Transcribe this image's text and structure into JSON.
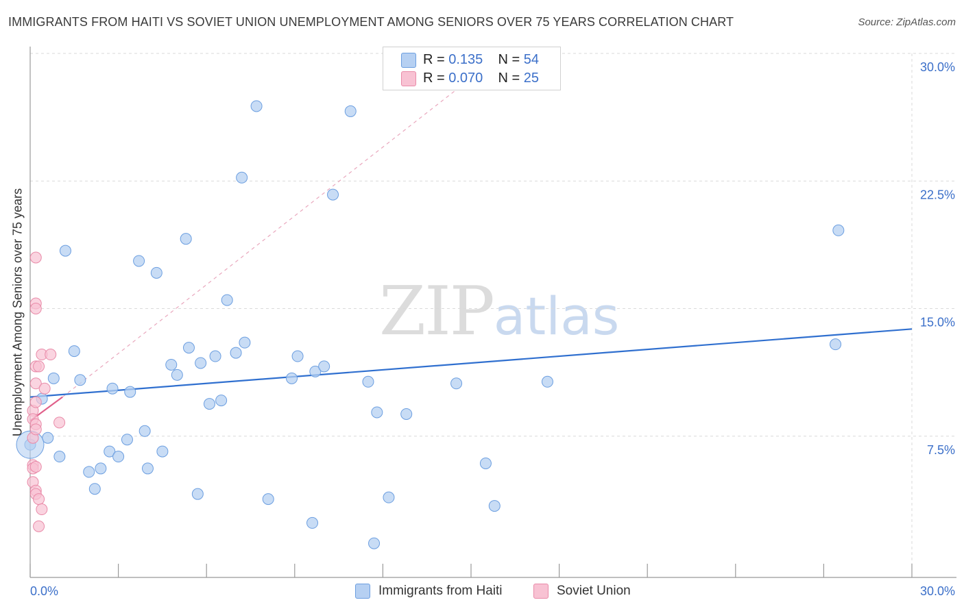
{
  "title": "IMMIGRANTS FROM HAITI VS SOVIET UNION UNEMPLOYMENT AMONG SENIORS OVER 75 YEARS CORRELATION CHART",
  "source": "Source: ZipAtlas.com",
  "watermark": {
    "zip": "ZIP",
    "atlas": "atlas"
  },
  "legend": {
    "series1": {
      "r_label": "R = ",
      "r_value": "0.135",
      "n_label": "N = ",
      "n_value": "54"
    },
    "series2": {
      "r_label": "R = ",
      "r_value": "0.070",
      "n_label": "N = ",
      "n_value": "25"
    }
  },
  "colors": {
    "blue_fill": "#b6d0f2",
    "blue_stroke": "#6b9ee0",
    "blue_line": "#2f6fcf",
    "pink_fill": "#f8c2d3",
    "pink_stroke": "#e98aa8",
    "pink_line": "#e0608a",
    "grid": "#d9d9d9",
    "axis_text": "#3b6fc9"
  },
  "chart_data": {
    "type": "scatter",
    "title": "IMMIGRANTS FROM HAITI VS SOVIET UNION UNEMPLOYMENT AMONG SENIORS OVER 75 YEARS CORRELATION CHART",
    "xlabel": "",
    "ylabel": "Unemployment Among Seniors over 75 years",
    "xlim": [
      0,
      30
    ],
    "ylim": [
      0,
      30
    ],
    "x_tick_labels": [
      "0.0%",
      "30.0%"
    ],
    "y_ticks": [
      7.5,
      15.0,
      22.5,
      30.0
    ],
    "y_tick_labels": [
      "7.5%",
      "15.0%",
      "22.5%",
      "30.0%"
    ],
    "series": [
      {
        "name": "Immigrants from Haiti",
        "color": "#6b9ee0",
        "points": [
          [
            0.0,
            7.0
          ],
          [
            0.4,
            9.7
          ],
          [
            0.6,
            7.4
          ],
          [
            0.8,
            10.9
          ],
          [
            1.0,
            6.3
          ],
          [
            1.2,
            18.4
          ],
          [
            1.5,
            12.5
          ],
          [
            1.7,
            10.8
          ],
          [
            2.0,
            5.4
          ],
          [
            2.2,
            4.4
          ],
          [
            2.4,
            5.6
          ],
          [
            2.7,
            6.6
          ],
          [
            2.8,
            10.3
          ],
          [
            3.0,
            6.3
          ],
          [
            3.3,
            7.3
          ],
          [
            3.4,
            10.1
          ],
          [
            3.7,
            17.8
          ],
          [
            3.9,
            7.8
          ],
          [
            4.0,
            5.6
          ],
          [
            4.3,
            17.1
          ],
          [
            4.5,
            6.6
          ],
          [
            4.8,
            11.7
          ],
          [
            5.0,
            11.1
          ],
          [
            5.3,
            19.1
          ],
          [
            5.4,
            12.7
          ],
          [
            5.7,
            4.1
          ],
          [
            5.8,
            11.8
          ],
          [
            6.1,
            9.4
          ],
          [
            6.3,
            12.2
          ],
          [
            6.5,
            9.6
          ],
          [
            6.7,
            15.5
          ],
          [
            7.0,
            12.4
          ],
          [
            7.2,
            22.7
          ],
          [
            7.3,
            13.0
          ],
          [
            7.7,
            26.9
          ],
          [
            8.1,
            3.8
          ],
          [
            8.9,
            10.9
          ],
          [
            9.1,
            12.2
          ],
          [
            9.6,
            2.4
          ],
          [
            9.7,
            11.3
          ],
          [
            10.0,
            11.6
          ],
          [
            10.3,
            21.7
          ],
          [
            10.9,
            26.6
          ],
          [
            11.5,
            10.7
          ],
          [
            11.7,
            1.2
          ],
          [
            11.8,
            8.9
          ],
          [
            12.2,
            3.9
          ],
          [
            12.8,
            8.8
          ],
          [
            14.5,
            10.6
          ],
          [
            15.5,
            5.9
          ],
          [
            15.8,
            3.4
          ],
          [
            17.6,
            10.7
          ],
          [
            27.4,
            12.9
          ],
          [
            27.5,
            19.6
          ]
        ],
        "trend": {
          "x": [
            0.0,
            30.0
          ],
          "y": [
            9.8,
            13.8
          ]
        }
      },
      {
        "name": "Soviet Union",
        "color": "#e98aa8",
        "points": [
          [
            0.0,
            9.0
          ],
          [
            0.0,
            8.5
          ],
          [
            0.0,
            7.4
          ],
          [
            0.0,
            5.8
          ],
          [
            0.0,
            5.6
          ],
          [
            0.0,
            4.8
          ],
          [
            0.1,
            18.0
          ],
          [
            0.1,
            15.3
          ],
          [
            0.1,
            15.0
          ],
          [
            0.1,
            11.6
          ],
          [
            0.1,
            10.6
          ],
          [
            0.1,
            9.5
          ],
          [
            0.1,
            8.2
          ],
          [
            0.1,
            7.9
          ],
          [
            0.1,
            5.7
          ],
          [
            0.1,
            4.3
          ],
          [
            0.1,
            4.1
          ],
          [
            0.2,
            11.6
          ],
          [
            0.2,
            3.8
          ],
          [
            0.2,
            2.2
          ],
          [
            0.3,
            12.3
          ],
          [
            0.3,
            3.2
          ],
          [
            0.4,
            10.3
          ],
          [
            0.6,
            12.3
          ],
          [
            0.9,
            8.3
          ]
        ],
        "trend": {
          "x": [
            0.0,
            1.1
          ],
          "y": [
            8.4,
            9.8
          ]
        },
        "trend_extended": {
          "x": [
            1.1,
            14.6
          ],
          "y": [
            9.8,
            28.0
          ]
        }
      }
    ],
    "legend": [
      "Immigrants from Haiti",
      "Soviet Union"
    ],
    "grid": true
  }
}
